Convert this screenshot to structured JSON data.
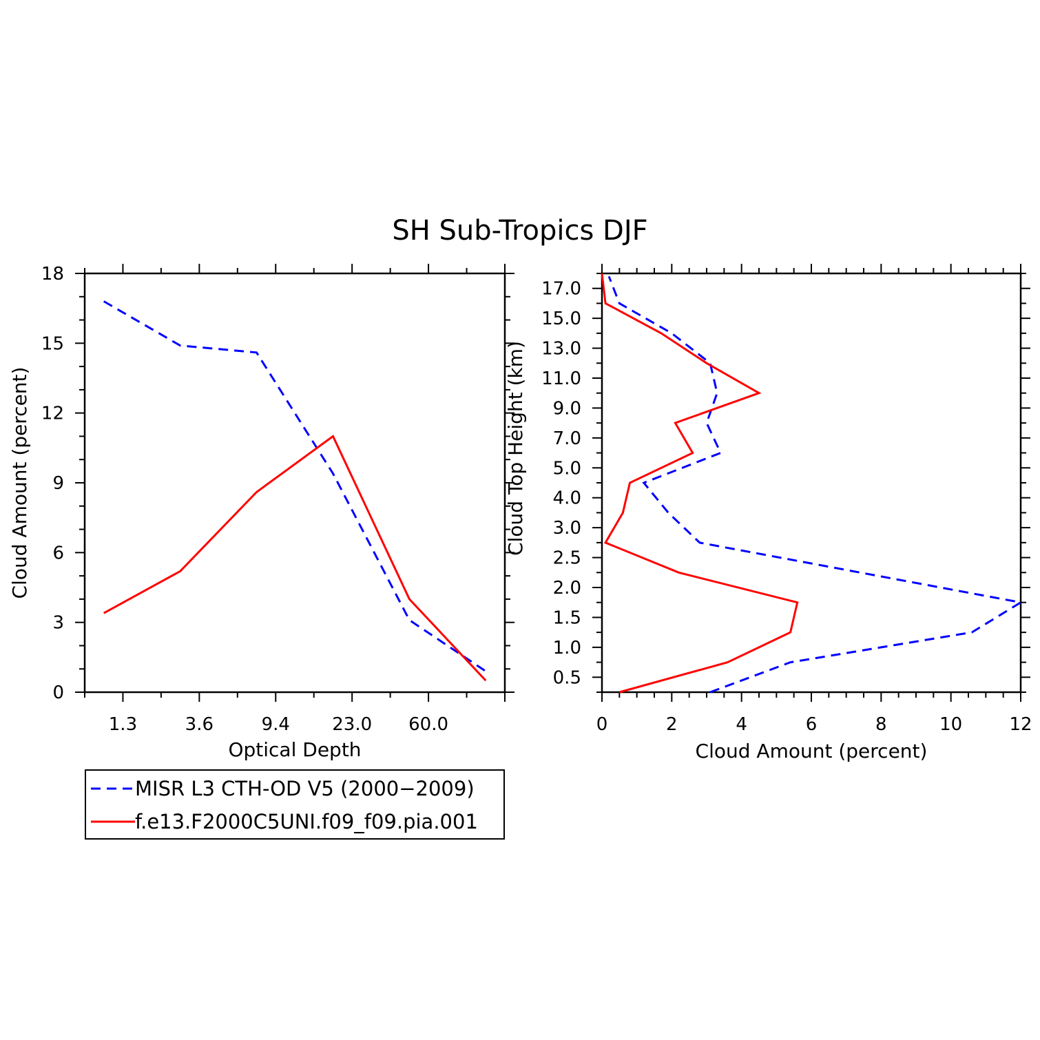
{
  "title": "SH Sub-Tropics DJF",
  "colors": {
    "misr": "#0000ff",
    "model": "#ff0000",
    "axis": "#000000"
  },
  "chart_data": [
    {
      "type": "line",
      "xlabel": "Optical Depth",
      "ylabel": "Cloud Amount (percent)",
      "x_tick_labels": [
        "1.3",
        "3.6",
        "9.4",
        "23.0",
        "60.0"
      ],
      "y_ticks": [
        0,
        3,
        6,
        9,
        12,
        15,
        18
      ],
      "ylim": [
        0,
        18
      ],
      "categories": [
        "",
        "1.3",
        "",
        "3.6",
        "",
        "9.4",
        "",
        "23.0",
        "",
        "60.0",
        ""
      ],
      "series": [
        {
          "name": "MISR L3 CTH-OD V5 (2000-2009)",
          "style": "dashed",
          "color": "#0000ff",
          "points": [
            [
              0.5,
              16.8
            ],
            [
              2.5,
              14.9
            ],
            [
              4.5,
              14.6
            ],
            [
              6.5,
              9.4
            ],
            [
              8.5,
              3.1
            ],
            [
              10.5,
              0.9
            ]
          ]
        },
        {
          "name": "f.e13.F2000C5UNI.f09_f09.pia.001",
          "style": "solid",
          "color": "#ff0000",
          "points": [
            [
              0.5,
              3.4
            ],
            [
              2.5,
              5.2
            ],
            [
              4.5,
              8.6
            ],
            [
              6.5,
              11.0
            ],
            [
              8.5,
              4.0
            ],
            [
              10.5,
              0.5
            ]
          ]
        }
      ]
    },
    {
      "type": "line",
      "xlabel": "Cloud Amount (percent)",
      "ylabel": "Cloud Top Height (km)",
      "x_ticks": [
        0,
        2,
        4,
        6,
        8,
        10,
        12
      ],
      "xlim": [
        0,
        12
      ],
      "y_tick_labels": [
        "0.5",
        "1.0",
        "1.5",
        "2.0",
        "2.5",
        "3.0",
        "4.0",
        "5.0",
        "7.0",
        "9.0",
        "11.0",
        "13.0",
        "15.0",
        "17.0"
      ],
      "series": [
        {
          "name": "MISR L3 CTH-OD V5 (2000-2009)",
          "style": "dashed",
          "color": "#0000ff",
          "points": [
            [
              3.1,
              0.0
            ],
            [
              5.4,
              1.0
            ],
            [
              10.6,
              2.0
            ],
            [
              12.0,
              3.0
            ],
            [
              2.8,
              5.0
            ],
            [
              1.9,
              6.0
            ],
            [
              1.2,
              7.0
            ],
            [
              3.4,
              8.0
            ],
            [
              3.0,
              9.0
            ],
            [
              3.3,
              10.0
            ],
            [
              3.1,
              11.0
            ],
            [
              2.0,
              12.0
            ],
            [
              0.5,
              13.0
            ],
            [
              0.2,
              13.9
            ]
          ]
        },
        {
          "name": "f.e13.F2000C5UNI.f09_f09.pia.001",
          "style": "solid",
          "color": "#ff0000",
          "points": [
            [
              0.5,
              0.0
            ],
            [
              3.6,
              1.0
            ],
            [
              5.4,
              2.0
            ],
            [
              5.6,
              3.0
            ],
            [
              2.2,
              4.0
            ],
            [
              0.1,
              5.0
            ],
            [
              0.6,
              6.0
            ],
            [
              0.8,
              7.0
            ],
            [
              2.6,
              8.0
            ],
            [
              2.1,
              9.0
            ],
            [
              4.5,
              10.0
            ],
            [
              3.0,
              11.0
            ],
            [
              1.7,
              12.0
            ],
            [
              0.1,
              13.0
            ],
            [
              0.0,
              14.0
            ]
          ]
        }
      ]
    }
  ],
  "legend": {
    "entries": [
      {
        "label": "MISR L3 CTH-OD V5 (2000−2009)",
        "style": "dashed",
        "color": "#0000ff"
      },
      {
        "label": "f.e13.F2000C5UNI.f09_f09.pia.001",
        "style": "solid",
        "color": "#ff0000"
      }
    ]
  }
}
